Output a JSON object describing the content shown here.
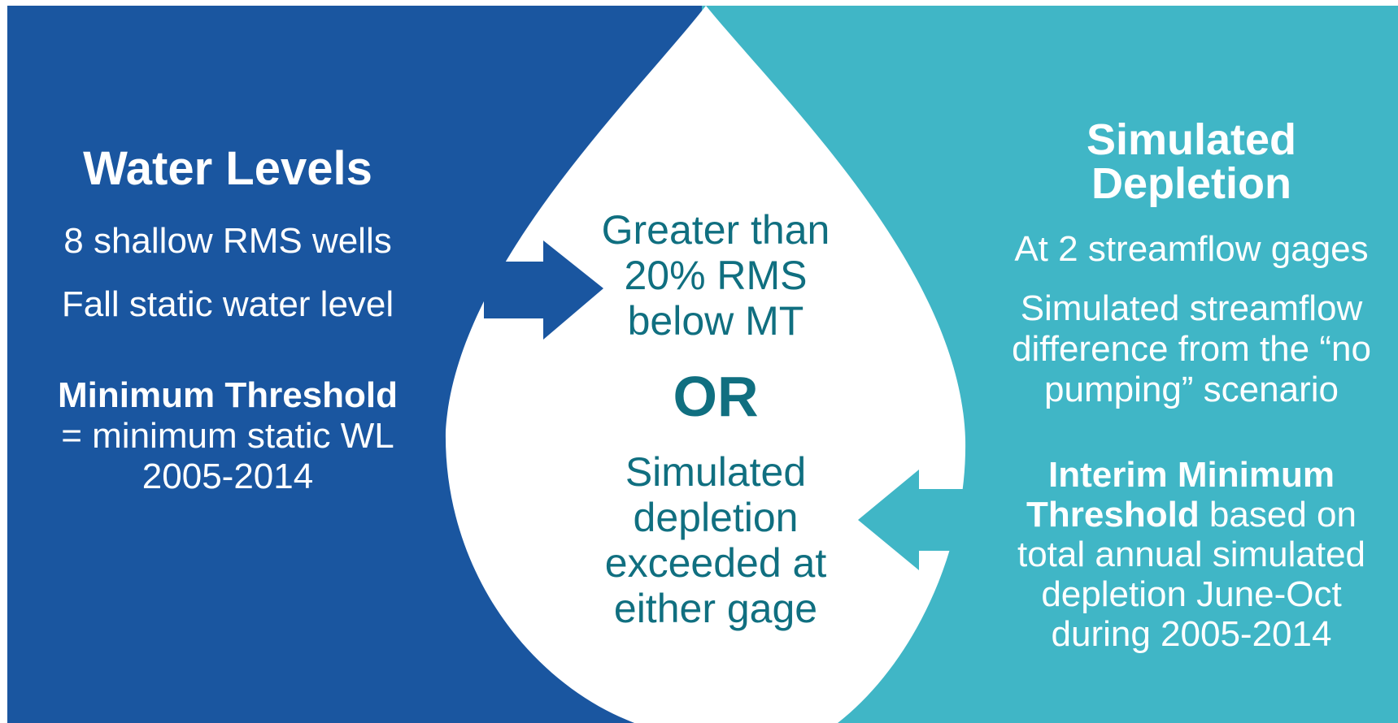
{
  "colors": {
    "left_panel": "#1a56a0",
    "right_panel": "#40b6c6",
    "drop": "#ffffff",
    "center_text": "#106f80"
  },
  "left": {
    "title": "Water Levels",
    "line1": "8 shallow RMS wells",
    "line2": "Fall static water level",
    "threshold_bold": "Minimum Threshold",
    "threshold_line1": "= minimum static WL",
    "threshold_line2": "2005-2014"
  },
  "center": {
    "top_line1": "Greater than",
    "top_line2": "20% RMS",
    "top_line3": "below MT",
    "or": "OR",
    "bottom_line1": "Simulated",
    "bottom_line2": "depletion",
    "bottom_line3": "exceeded at",
    "bottom_line4": "either gage"
  },
  "right": {
    "title_line1": "Simulated",
    "title_line2": "Depletion",
    "line1": "At 2 streamflow gages",
    "line2a": "Simulated streamflow",
    "line2b": "difference from the “no",
    "line2c": "pumping” scenario",
    "threshold_bold1": "Interim Minimum",
    "threshold_bold2": "Threshold",
    "threshold_rest1": " based on",
    "threshold_line3": "total annual simulated",
    "threshold_line4": "depletion June-Oct",
    "threshold_line5": "during 2005-2014"
  },
  "icons": {
    "left_arrow": "arrow-right-icon",
    "right_arrow": "arrow-left-icon"
  }
}
